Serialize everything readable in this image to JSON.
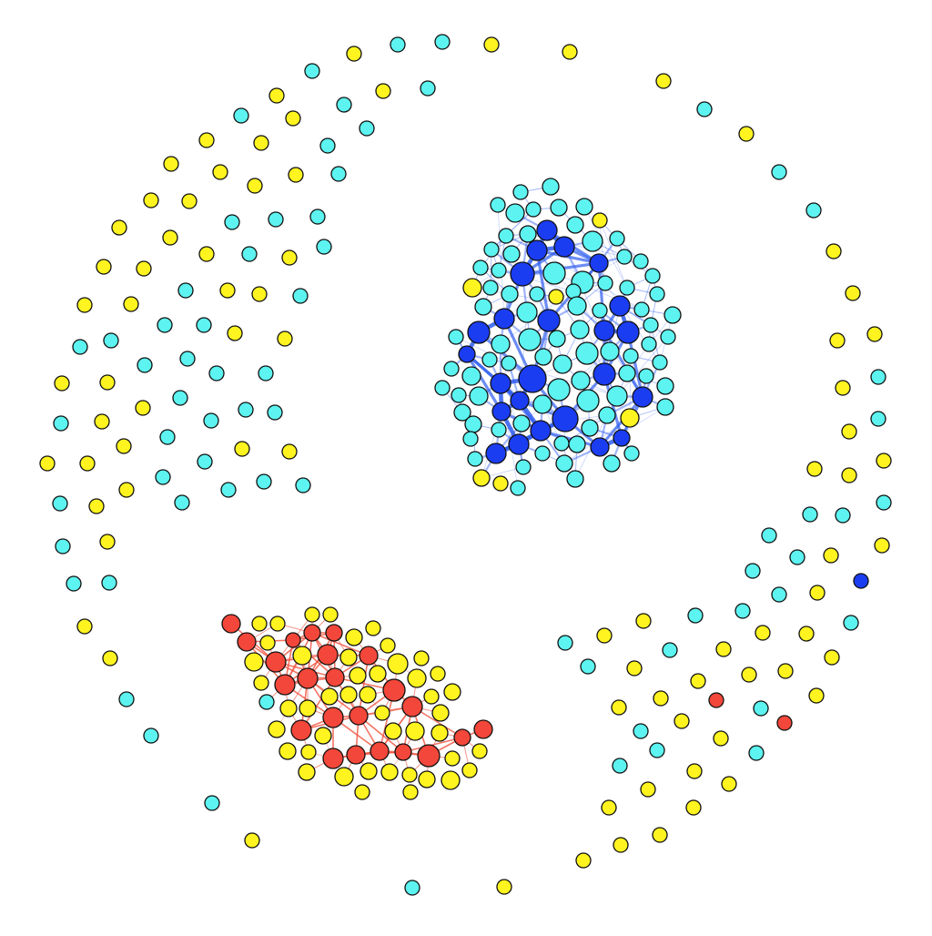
{
  "colors": {
    "background": "#ffffff",
    "yellow": "#fff41f",
    "cyan": "#5cf3f0",
    "blue": "#1b3df2",
    "red": "#f2473a",
    "node_stroke": "#111111",
    "edge_blue": "#2f5cf0",
    "edge_red": "#f0503c"
  },
  "groups": [
    {
      "id": "blue-cluster",
      "kind": "cluster",
      "colors_present": [
        "blue",
        "cyan",
        "yellow"
      ]
    },
    {
      "id": "red-cluster",
      "kind": "cluster",
      "colors_present": [
        "red",
        "yellow",
        "cyan"
      ]
    },
    {
      "id": "outer-ring",
      "kind": "isolated-nodes",
      "colors_present": [
        "yellow",
        "cyan",
        "blue",
        "red"
      ]
    }
  ]
}
